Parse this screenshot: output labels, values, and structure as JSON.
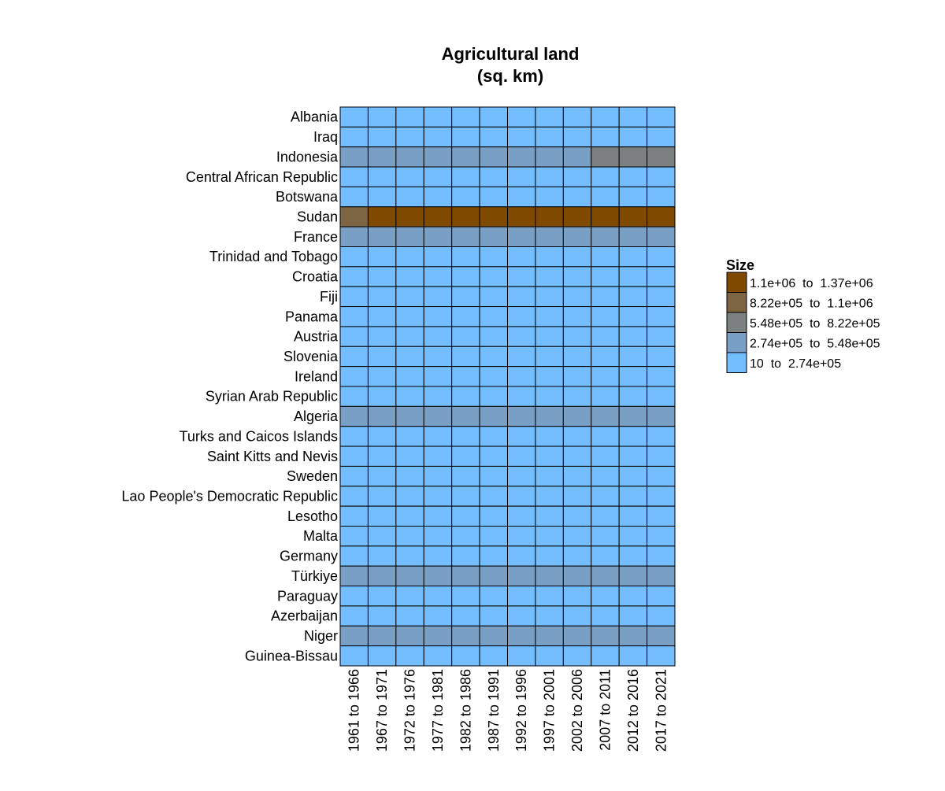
{
  "chart_data": {
    "type": "heatmap",
    "title": [
      "Agricultural land",
      "(sq. km)"
    ],
    "xlabel": "",
    "ylabel": "",
    "x": [
      "1961 to 1966",
      "1967 to 1971",
      "1972 to 1976",
      "1977 to 1981",
      "1982 to 1986",
      "1987 to 1991",
      "1992 to 1996",
      "1997 to 2001",
      "2002 to 2006",
      "2007 to 2011",
      "2012 to 2016",
      "2017 to 2021"
    ],
    "y": [
      "Albania",
      "Iraq",
      "Indonesia",
      "Central African Republic",
      "Botswana",
      "Sudan",
      "France",
      "Trinidad and Tobago",
      "Croatia",
      "Fiji",
      "Panama",
      "Austria",
      "Slovenia",
      "Ireland",
      "Syrian Arab Republic",
      "Algeria",
      "Turks and Caicos Islands",
      "Saint Kitts and Nevis",
      "Sweden",
      "Lao People's Democratic Republic",
      "Lesotho",
      "Malta",
      "Germany",
      "Türkiye",
      "Paraguay",
      "Azerbaijan",
      "Niger",
      "Guinea-Bissau"
    ],
    "legend": {
      "title": "Size",
      "position": "right",
      "bins": [
        {
          "label": "1.1e+06  to  1.37e+06",
          "color": "#7f4a00"
        },
        {
          "label": "8.22e+05  to  1.1e+06",
          "color": "#7d6543"
        },
        {
          "label": "5.48e+05  to  8.22e+05",
          "color": "#7b8180"
        },
        {
          "label": "2.74e+05  to  5.48e+05",
          "color": "#79a0c4"
        },
        {
          "label": "10  to  2.74e+05",
          "color": "#74bdff"
        }
      ]
    },
    "cell_bins": [
      [
        4,
        4,
        4,
        4,
        4,
        4,
        4,
        4,
        4,
        4,
        4,
        4
      ],
      [
        4,
        4,
        4,
        4,
        4,
        4,
        4,
        4,
        4,
        4,
        4,
        4
      ],
      [
        3,
        3,
        3,
        3,
        3,
        3,
        3,
        3,
        3,
        2,
        2,
        2
      ],
      [
        4,
        4,
        4,
        4,
        4,
        4,
        4,
        4,
        4,
        4,
        4,
        4
      ],
      [
        4,
        4,
        4,
        4,
        4,
        4,
        4,
        4,
        4,
        4,
        4,
        4
      ],
      [
        1,
        0,
        0,
        0,
        0,
        0,
        0,
        0,
        0,
        0,
        0,
        0
      ],
      [
        3,
        3,
        3,
        3,
        3,
        3,
        3,
        3,
        3,
        3,
        3,
        3
      ],
      [
        4,
        4,
        4,
        4,
        4,
        4,
        4,
        4,
        4,
        4,
        4,
        4
      ],
      [
        4,
        4,
        4,
        4,
        4,
        4,
        4,
        4,
        4,
        4,
        4,
        4
      ],
      [
        4,
        4,
        4,
        4,
        4,
        4,
        4,
        4,
        4,
        4,
        4,
        4
      ],
      [
        4,
        4,
        4,
        4,
        4,
        4,
        4,
        4,
        4,
        4,
        4,
        4
      ],
      [
        4,
        4,
        4,
        4,
        4,
        4,
        4,
        4,
        4,
        4,
        4,
        4
      ],
      [
        4,
        4,
        4,
        4,
        4,
        4,
        4,
        4,
        4,
        4,
        4,
        4
      ],
      [
        4,
        4,
        4,
        4,
        4,
        4,
        4,
        4,
        4,
        4,
        4,
        4
      ],
      [
        4,
        4,
        4,
        4,
        4,
        4,
        4,
        4,
        4,
        4,
        4,
        4
      ],
      [
        3,
        3,
        3,
        3,
        3,
        3,
        3,
        3,
        3,
        3,
        3,
        3
      ],
      [
        4,
        4,
        4,
        4,
        4,
        4,
        4,
        4,
        4,
        4,
        4,
        4
      ],
      [
        4,
        4,
        4,
        4,
        4,
        4,
        4,
        4,
        4,
        4,
        4,
        4
      ],
      [
        4,
        4,
        4,
        4,
        4,
        4,
        4,
        4,
        4,
        4,
        4,
        4
      ],
      [
        4,
        4,
        4,
        4,
        4,
        4,
        4,
        4,
        4,
        4,
        4,
        4
      ],
      [
        4,
        4,
        4,
        4,
        4,
        4,
        4,
        4,
        4,
        4,
        4,
        4
      ],
      [
        4,
        4,
        4,
        4,
        4,
        4,
        4,
        4,
        4,
        4,
        4,
        4
      ],
      [
        4,
        4,
        4,
        4,
        4,
        4,
        4,
        4,
        4,
        4,
        4,
        4
      ],
      [
        3,
        3,
        3,
        3,
        3,
        3,
        3,
        3,
        3,
        3,
        3,
        3
      ],
      [
        4,
        4,
        4,
        4,
        4,
        4,
        4,
        4,
        4,
        4,
        4,
        4
      ],
      [
        4,
        4,
        4,
        4,
        4,
        4,
        4,
        4,
        4,
        4,
        4,
        4
      ],
      [
        3,
        3,
        3,
        3,
        3,
        3,
        3,
        3,
        3,
        3,
        3,
        3
      ],
      [
        4,
        4,
        4,
        4,
        4,
        4,
        4,
        4,
        4,
        4,
        4,
        4
      ]
    ]
  }
}
